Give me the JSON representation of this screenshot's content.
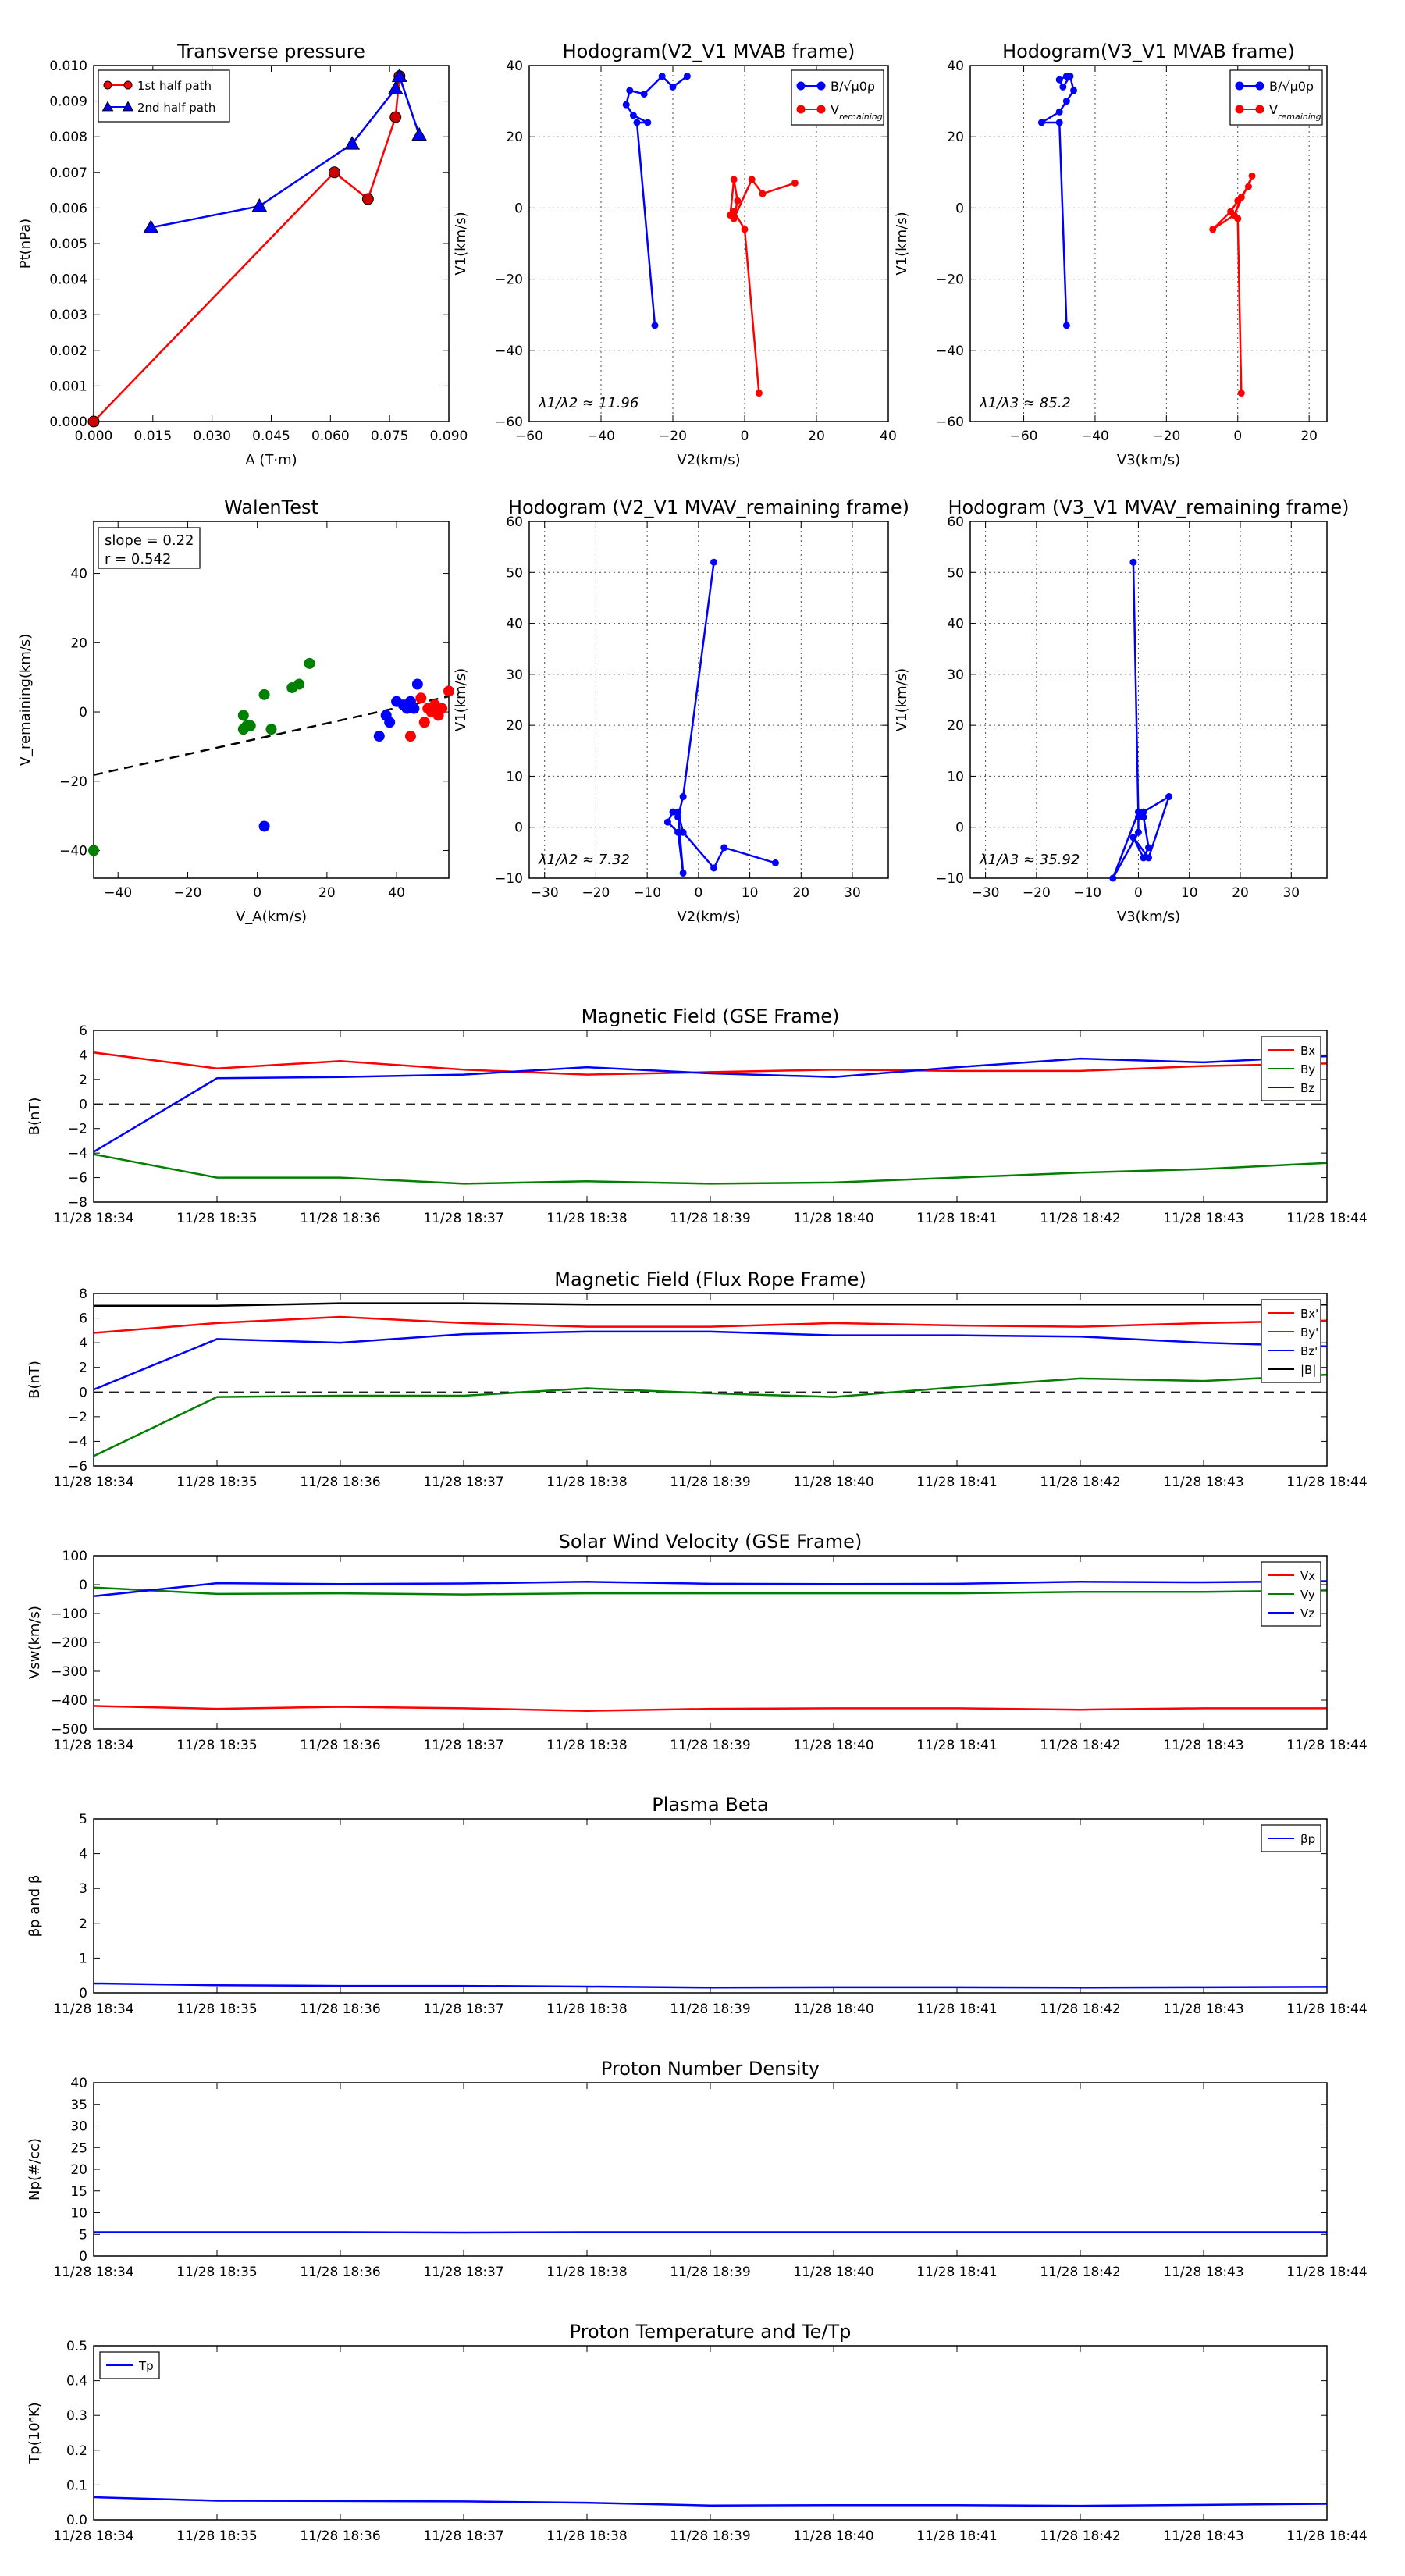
{
  "colors": {
    "red": "#ff0000",
    "blue": "#0000ff",
    "green": "#008000",
    "black": "#000000",
    "redMarker": "#cc0000"
  },
  "chart_data": [
    {
      "id": "transverse-pressure",
      "type": "line",
      "title": "Transverse pressure",
      "xlabel": "A (T·m)",
      "ylabel": "Pt(nPa)",
      "xlim": [
        0,
        0.09
      ],
      "ylim": [
        0,
        0.01
      ],
      "xticks": [
        "0.000",
        "0.015",
        "0.030",
        "0.045",
        "0.060",
        "0.075",
        "0.090"
      ],
      "yticks": [
        "0.000",
        "0.001",
        "0.002",
        "0.003",
        "0.004",
        "0.005",
        "0.006",
        "0.007",
        "0.008",
        "0.009",
        "0.010"
      ],
      "legend": [
        "1st half path",
        "2nd half path"
      ],
      "series": [
        {
          "name": "1st half path",
          "color": "red",
          "marker": "circle",
          "points": [
            [
              0,
              0
            ],
            [
              0.061,
              0.007
            ],
            [
              0.0695,
              0.00625
            ],
            [
              0.0765,
              0.00855
            ],
            [
              0.0775,
              0.0097
            ]
          ]
        },
        {
          "name": "2nd half path",
          "color": "blue",
          "marker": "triangle",
          "points": [
            [
              0.0145,
              0.00545
            ],
            [
              0.042,
              0.00605
            ],
            [
              0.0655,
              0.0078
            ],
            [
              0.0765,
              0.00935
            ],
            [
              0.0775,
              0.0097
            ],
            [
              0.0825,
              0.00805
            ]
          ]
        }
      ]
    },
    {
      "id": "hodogram-v2-mvab",
      "type": "line",
      "title": "Hodogram(V2_V1 MVAB frame)",
      "xlabel": "V2(km/s)",
      "ylabel": "V1(km/s)",
      "xlim": [
        -60,
        40
      ],
      "ylim": [
        -60,
        40
      ],
      "xticks": [
        "−60",
        "−40",
        "−20",
        "0",
        "20",
        "40"
      ],
      "yticks": [
        "−60",
        "−40",
        "−20",
        "0",
        "20",
        "40"
      ],
      "legend": [
        "B/√μ0ρ",
        "V_remaining"
      ],
      "annotation": "λ1/λ2 ≈ 11.96",
      "series": [
        {
          "name": "B",
          "color": "blue",
          "points": [
            [
              -25,
              -33
            ],
            [
              -30,
              24
            ],
            [
              -27,
              24
            ],
            [
              -31,
              26
            ],
            [
              -33,
              29
            ],
            [
              -32,
              33
            ],
            [
              -28,
              32
            ],
            [
              -23,
              37
            ],
            [
              -20,
              34
            ],
            [
              -16,
              37
            ]
          ]
        },
        {
          "name": "V",
          "color": "red",
          "points": [
            [
              4,
              -52
            ],
            [
              0,
              -6
            ],
            [
              -3,
              -1
            ],
            [
              -4,
              -2
            ],
            [
              -3,
              8
            ],
            [
              -2,
              2
            ],
            [
              -3,
              -3
            ],
            [
              2,
              8
            ],
            [
              5,
              4
            ],
            [
              14,
              7
            ]
          ]
        }
      ]
    },
    {
      "id": "hodogram-v3-mvab",
      "type": "line",
      "title": "Hodogram(V3_V1 MVAB frame)",
      "xlabel": "V3(km/s)",
      "ylabel": "V1(km/s)",
      "xlim": [
        -75,
        25
      ],
      "ylim": [
        -60,
        40
      ],
      "xticks": [
        "−60",
        "−40",
        "−20",
        "0",
        "20"
      ],
      "yticks": [
        "−60",
        "−40",
        "−20",
        "0",
        "20",
        "40"
      ],
      "legend": [
        "B/√μ0ρ",
        "V_remaining"
      ],
      "annotation": "λ1/λ3 ≈ 85.2",
      "series": [
        {
          "name": "B",
          "color": "blue",
          "points": [
            [
              -48,
              -33
            ],
            [
              -50,
              24
            ],
            [
              -55,
              24
            ],
            [
              -50,
              27
            ],
            [
              -48,
              30
            ],
            [
              -46,
              33
            ],
            [
              -47,
              37
            ],
            [
              -49,
              34
            ],
            [
              -50,
              36
            ],
            [
              -48,
              37
            ]
          ]
        },
        {
          "name": "V",
          "color": "red",
          "points": [
            [
              1,
              -52
            ],
            [
              0,
              -3
            ],
            [
              -1,
              -2
            ],
            [
              -7,
              -6
            ],
            [
              -2,
              -1
            ],
            [
              0,
              2
            ],
            [
              3,
              6
            ],
            [
              4,
              9
            ],
            [
              -1,
              -2
            ],
            [
              1,
              3
            ]
          ]
        }
      ]
    },
    {
      "id": "walen-test",
      "type": "scatter",
      "title": "WalenTest",
      "xlabel": "V_A(km/s)",
      "ylabel": "V_remaining(km/s)",
      "xlim": [
        -47,
        55
      ],
      "ylim": [
        -48,
        55
      ],
      "xticks": [
        "−40",
        "−20",
        "0",
        "20",
        "40"
      ],
      "yticks": [
        "−40",
        "−20",
        "0",
        "20",
        "40"
      ],
      "annotation": [
        "slope = 0.22",
        "r = 0.542"
      ],
      "fit_line": [
        [
          -47,
          -18.2
        ],
        [
          55,
          4.5
        ]
      ],
      "series": [
        {
          "name": "green",
          "color": "green",
          "points": [
            [
              -47,
              -40
            ],
            [
              -4,
              -5
            ],
            [
              -3,
              -4
            ],
            [
              -2,
              -4
            ],
            [
              -4,
              -1
            ],
            [
              2,
              5
            ],
            [
              4,
              -5
            ],
            [
              10,
              7
            ],
            [
              12,
              8
            ],
            [
              15,
              14
            ]
          ]
        },
        {
          "name": "blue",
          "color": "blue",
          "points": [
            [
              2,
              -33
            ],
            [
              35,
              -7
            ],
            [
              37,
              -1
            ],
            [
              38,
              -3
            ],
            [
              40,
              3
            ],
            [
              42,
              2
            ],
            [
              44,
              3
            ],
            [
              45,
              1
            ],
            [
              46,
              8
            ],
            [
              43,
              1
            ]
          ]
        },
        {
          "name": "red",
          "color": "red",
          "points": [
            [
              44,
              -7
            ],
            [
              47,
              4
            ],
            [
              48,
              -3
            ],
            [
              50,
              0
            ],
            [
              51,
              2
            ],
            [
              52,
              -1
            ],
            [
              53,
              1
            ],
            [
              55,
              6
            ],
            [
              49,
              1
            ]
          ]
        }
      ]
    },
    {
      "id": "hodogram-v2-mvav",
      "type": "line",
      "title": "Hodogram (V2_V1 MVAV_remaining frame)",
      "xlabel": "V2(km/s)",
      "ylabel": "V1(km/s)",
      "xlim": [
        -33,
        37
      ],
      "ylim": [
        -10,
        60
      ],
      "xticks": [
        "−30",
        "−20",
        "−10",
        "0",
        "10",
        "20",
        "30"
      ],
      "yticks": [
        "−10",
        "0",
        "10",
        "20",
        "30",
        "40",
        "50",
        "60"
      ],
      "annotation": "λ1/λ2 ≈ 7.32",
      "series": [
        {
          "name": "V",
          "color": "blue",
          "points": [
            [
              3,
              52
            ],
            [
              -3,
              6
            ],
            [
              -4,
              2
            ],
            [
              -5,
              3
            ],
            [
              -6,
              1
            ],
            [
              -4,
              -1
            ],
            [
              -3,
              -9
            ],
            [
              -4,
              3
            ],
            [
              -3,
              -1
            ],
            [
              3,
              -8
            ],
            [
              5,
              -4
            ],
            [
              15,
              -7
            ]
          ]
        }
      ]
    },
    {
      "id": "hodogram-v3-mvav",
      "type": "line",
      "title": "Hodogram (V3_V1 MVAV_remaining frame)",
      "xlabel": "V3(km/s)",
      "ylabel": "V1(km/s)",
      "xlim": [
        -33,
        37
      ],
      "ylim": [
        -10,
        60
      ],
      "xticks": [
        "−30",
        "−20",
        "−10",
        "0",
        "10",
        "20",
        "30"
      ],
      "yticks": [
        "−10",
        "0",
        "10",
        "20",
        "30",
        "40",
        "50",
        "60"
      ],
      "annotation": "λ1/λ3 ≈ 35.92",
      "series": [
        {
          "name": "V",
          "color": "blue",
          "points": [
            [
              -1,
              52
            ],
            [
              0,
              2
            ],
            [
              0,
              -1
            ],
            [
              -5,
              -10
            ],
            [
              0,
              3
            ],
            [
              1,
              3
            ],
            [
              6,
              6
            ],
            [
              2,
              -6
            ],
            [
              -1,
              -2
            ],
            [
              1,
              -6
            ],
            [
              2,
              -4
            ],
            [
              1,
              2
            ]
          ]
        }
      ]
    },
    {
      "id": "mag-gse",
      "type": "line",
      "title": "Magnetic Field (GSE Frame)",
      "ylabel": "B(nT)",
      "ylim": [
        -8,
        6
      ],
      "yticks": [
        "−8",
        "−6",
        "−4",
        "−2",
        "0",
        "2",
        "4",
        "6"
      ],
      "zero_line": true,
      "x": [
        "11/28 18:34",
        "11/28 18:35",
        "11/28 18:36",
        "11/28 18:37",
        "11/28 18:38",
        "11/28 18:39",
        "11/28 18:40",
        "11/28 18:41",
        "11/28 18:42",
        "11/28 18:43",
        "11/28 18:44"
      ],
      "legend": [
        "Bx",
        "By",
        "Bz"
      ],
      "series": [
        {
          "name": "Bx",
          "color": "red",
          "values": [
            4.2,
            2.9,
            3.5,
            2.8,
            2.4,
            2.6,
            2.8,
            2.7,
            2.7,
            3.1,
            3.3
          ]
        },
        {
          "name": "By",
          "color": "green",
          "values": [
            -4.1,
            -6.0,
            -6.0,
            -6.5,
            -6.3,
            -6.5,
            -6.4,
            -6.0,
            -5.6,
            -5.3,
            -4.8
          ]
        },
        {
          "name": "Bz",
          "color": "blue",
          "values": [
            -3.9,
            2.1,
            2.2,
            2.4,
            3.0,
            2.5,
            2.2,
            3.0,
            3.7,
            3.4,
            3.9
          ]
        }
      ]
    },
    {
      "id": "mag-flux-rope",
      "type": "line",
      "title": "Magnetic Field (Flux Rope Frame)",
      "ylabel": "B(nT)",
      "ylim": [
        -6,
        8
      ],
      "yticks": [
        "−6",
        "−4",
        "−2",
        "0",
        "2",
        "4",
        "6",
        "8"
      ],
      "zero_line": true,
      "x": [
        "11/28 18:34",
        "11/28 18:35",
        "11/28 18:36",
        "11/28 18:37",
        "11/28 18:38",
        "11/28 18:39",
        "11/28 18:40",
        "11/28 18:41",
        "11/28 18:42",
        "11/28 18:43",
        "11/28 18:44"
      ],
      "legend": [
        "Bx'",
        "By'",
        "Bz'",
        "|B|"
      ],
      "series": [
        {
          "name": "Bx'",
          "color": "red",
          "values": [
            4.8,
            5.6,
            6.1,
            5.6,
            5.3,
            5.3,
            5.6,
            5.4,
            5.3,
            5.6,
            5.8
          ]
        },
        {
          "name": "By'",
          "color": "green",
          "values": [
            -5.2,
            -0.4,
            -0.3,
            -0.3,
            0.3,
            -0.1,
            -0.4,
            0.4,
            1.1,
            0.9,
            1.4
          ]
        },
        {
          "name": "Bz'",
          "color": "blue",
          "values": [
            0.2,
            4.3,
            4.0,
            4.7,
            4.9,
            4.9,
            4.6,
            4.6,
            4.5,
            4.0,
            3.7
          ]
        },
        {
          "name": "|B|",
          "color": "black",
          "values": [
            7.0,
            7.0,
            7.2,
            7.2,
            7.1,
            7.1,
            7.1,
            7.1,
            7.1,
            7.1,
            7.1
          ]
        }
      ]
    },
    {
      "id": "solar-wind",
      "type": "line",
      "title": "Solar Wind Velocity (GSE Frame)",
      "ylabel": "Vsw(km/s)",
      "ylim": [
        -500,
        100
      ],
      "yticks": [
        "−500",
        "−400",
        "−300",
        "−200",
        "−100",
        "0",
        "100"
      ],
      "x": [
        "11/28 18:34",
        "11/28 18:35",
        "11/28 18:36",
        "11/28 18:37",
        "11/28 18:38",
        "11/28 18:39",
        "11/28 18:40",
        "11/28 18:41",
        "11/28 18:42",
        "11/28 18:43",
        "11/28 18:44"
      ],
      "legend": [
        "Vx",
        "Vy",
        "Vz"
      ],
      "series": [
        {
          "name": "Vx",
          "color": "red",
          "values": [
            -420,
            -430,
            -423,
            -428,
            -437,
            -430,
            -428,
            -428,
            -433,
            -428,
            -428
          ]
        },
        {
          "name": "Vy",
          "color": "green",
          "values": [
            -10,
            -32,
            -30,
            -34,
            -30,
            -30,
            -30,
            -30,
            -25,
            -25,
            -20
          ]
        },
        {
          "name": "Vz",
          "color": "blue",
          "values": [
            -40,
            5,
            2,
            4,
            10,
            3,
            2,
            3,
            10,
            8,
            12
          ]
        }
      ]
    },
    {
      "id": "plasma-beta",
      "type": "line",
      "title": "Plasma Beta",
      "ylabel": "βp and β",
      "ylim": [
        0,
        5
      ],
      "yticks": [
        "0",
        "1",
        "2",
        "3",
        "4",
        "5"
      ],
      "x": [
        "11/28 18:34",
        "11/28 18:35",
        "11/28 18:36",
        "11/28 18:37",
        "11/28 18:38",
        "11/28 18:39",
        "11/28 18:40",
        "11/28 18:41",
        "11/28 18:42",
        "11/28 18:43",
        "11/28 18:44"
      ],
      "legend": [
        "βp"
      ],
      "series": [
        {
          "name": "βp",
          "color": "blue",
          "values": [
            0.27,
            0.22,
            0.2,
            0.2,
            0.18,
            0.15,
            0.16,
            0.16,
            0.15,
            0.16,
            0.17
          ]
        }
      ]
    },
    {
      "id": "proton-density",
      "type": "line",
      "title": "Proton Number Density",
      "ylabel": "Np(#/cc)",
      "ylim": [
        0,
        40
      ],
      "yticks": [
        "0",
        "5",
        "10",
        "15",
        "20",
        "25",
        "30",
        "35",
        "40"
      ],
      "x": [
        "11/28 18:34",
        "11/28 18:35",
        "11/28 18:36",
        "11/28 18:37",
        "11/28 18:38",
        "11/28 18:39",
        "11/28 18:40",
        "11/28 18:41",
        "11/28 18:42",
        "11/28 18:43",
        "11/28 18:44"
      ],
      "series": [
        {
          "name": "Np",
          "color": "blue",
          "values": [
            5.5,
            5.5,
            5.5,
            5.4,
            5.5,
            5.5,
            5.5,
            5.5,
            5.5,
            5.5,
            5.5
          ]
        }
      ]
    },
    {
      "id": "proton-temp",
      "type": "line",
      "title": "Proton Temperature and Te/Tp",
      "ylabel": "Tp(10⁶K)",
      "ylim": [
        0,
        0.5
      ],
      "yticks": [
        "0.0",
        "0.1",
        "0.2",
        "0.3",
        "0.4",
        "0.5"
      ],
      "x": [
        "11/28 18:34",
        "11/28 18:35",
        "11/28 18:36",
        "11/28 18:37",
        "11/28 18:38",
        "11/28 18:39",
        "11/28 18:40",
        "11/28 18:41",
        "11/28 18:42",
        "11/28 18:43",
        "11/28 18:44"
      ],
      "legend": [
        "Tp"
      ],
      "series": [
        {
          "name": "Tp",
          "color": "blue",
          "values": [
            0.065,
            0.055,
            0.054,
            0.053,
            0.049,
            0.041,
            0.042,
            0.042,
            0.04,
            0.043,
            0.046
          ]
        }
      ]
    }
  ]
}
